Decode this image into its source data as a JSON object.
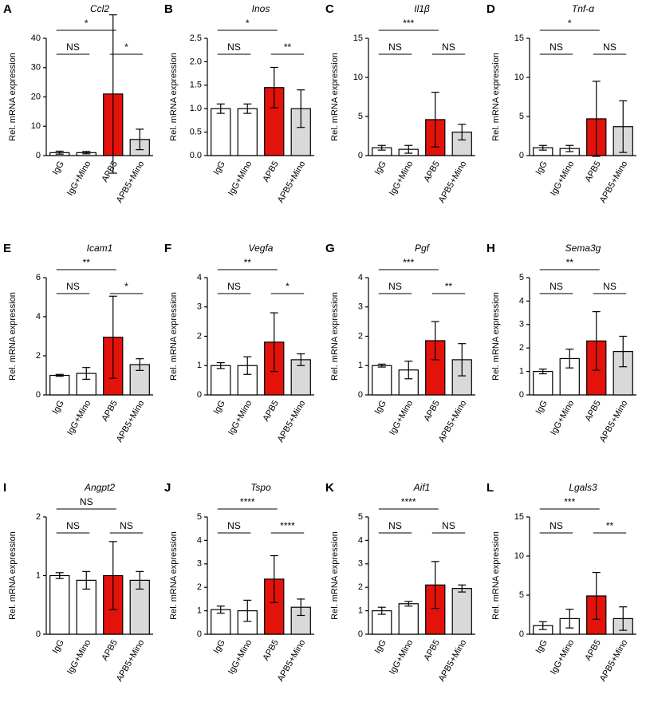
{
  "chart_data": [
    {
      "type": "bar",
      "panel": "A",
      "title": "Ccl2",
      "y_label": "Rel. mRNA expression",
      "categories": [
        "IgG",
        "IgG+Mino",
        "APB5",
        "APB5+Mino"
      ],
      "values": [
        1,
        1,
        21,
        5.5
      ],
      "errors": [
        0.5,
        0.4,
        27,
        3.5
      ],
      "colors": [
        "#ffffff",
        "#ffffff",
        "#e3120b",
        "#d9d9d9"
      ],
      "ylim": [
        0,
        40
      ],
      "yticks": [
        0,
        10,
        20,
        30,
        40
      ],
      "annotations": [
        {
          "label": "*",
          "from": 0,
          "to": 2
        },
        {
          "label": "NS",
          "from": 0,
          "to": 1
        },
        {
          "label": "*",
          "from": 2,
          "to": 3
        }
      ]
    },
    {
      "type": "bar",
      "panel": "B",
      "title": "Inos",
      "y_label": "Rel. mRNA expression",
      "categories": [
        "IgG",
        "IgG+Mino",
        "APB5",
        "APB5+Mino"
      ],
      "values": [
        1.0,
        1.0,
        1.45,
        1.0
      ],
      "errors": [
        0.1,
        0.1,
        0.43,
        0.4
      ],
      "colors": [
        "#ffffff",
        "#ffffff",
        "#e3120b",
        "#d9d9d9"
      ],
      "ylim": [
        0,
        2.5
      ],
      "yticks": [
        {
          "value": 0,
          "label": "0.0"
        },
        0.5,
        {
          "value": 1,
          "label": "1.0"
        },
        1.5,
        {
          "value": 2,
          "label": "2.0"
        },
        2.5
      ],
      "annotations": [
        {
          "label": "*",
          "from": 0,
          "to": 2
        },
        {
          "label": "NS",
          "from": 0,
          "to": 1
        },
        {
          "label": "**",
          "from": 2,
          "to": 3
        }
      ]
    },
    {
      "type": "bar",
      "panel": "C",
      "title": "Il1β",
      "y_label": "Rel. mRNA expression",
      "categories": [
        "IgG",
        "IgG+Mino",
        "APB5",
        "APB5+Mino"
      ],
      "values": [
        1.0,
        0.8,
        4.6,
        3.0
      ],
      "errors": [
        0.3,
        0.5,
        3.5,
        1.0
      ],
      "colors": [
        "#ffffff",
        "#ffffff",
        "#e3120b",
        "#d9d9d9"
      ],
      "ylim": [
        0,
        15
      ],
      "yticks": [
        0,
        5,
        10,
        15
      ],
      "annotations": [
        {
          "label": "***",
          "from": 0,
          "to": 2
        },
        {
          "label": "NS",
          "from": 0,
          "to": 1
        },
        {
          "label": "NS",
          "from": 2,
          "to": 3
        }
      ]
    },
    {
      "type": "bar",
      "panel": "D",
      "title": "Tnf-α",
      "y_label": "Rel. mRNA expression",
      "categories": [
        "IgG",
        "IgG+Mino",
        "APB5",
        "APB5+Mino"
      ],
      "values": [
        1.0,
        0.9,
        4.7,
        3.7
      ],
      "errors": [
        0.3,
        0.4,
        4.8,
        3.3
      ],
      "colors": [
        "#ffffff",
        "#ffffff",
        "#e3120b",
        "#d9d9d9"
      ],
      "ylim": [
        0,
        15
      ],
      "yticks": [
        0,
        5,
        10,
        15
      ],
      "annotations": [
        {
          "label": "*",
          "from": 0,
          "to": 2
        },
        {
          "label": "NS",
          "from": 0,
          "to": 1
        },
        {
          "label": "NS",
          "from": 2,
          "to": 3
        }
      ]
    },
    {
      "type": "bar",
      "panel": "E",
      "title": "Icam1",
      "y_label": "Rel. mRNA expression",
      "categories": [
        "IgG",
        "IgG+Mino",
        "APB5",
        "APB5+Mino"
      ],
      "values": [
        1.0,
        1.1,
        2.95,
        1.55
      ],
      "errors": [
        0.05,
        0.3,
        2.1,
        0.3
      ],
      "colors": [
        "#ffffff",
        "#ffffff",
        "#e3120b",
        "#d9d9d9"
      ],
      "ylim": [
        0,
        6
      ],
      "yticks": [
        0,
        2,
        4,
        6
      ],
      "annotations": [
        {
          "label": "**",
          "from": 0,
          "to": 2
        },
        {
          "label": "NS",
          "from": 0,
          "to": 1
        },
        {
          "label": "*",
          "from": 2,
          "to": 3
        }
      ]
    },
    {
      "type": "bar",
      "panel": "F",
      "title": "Vegfa",
      "y_label": "Rel. mRNA expression",
      "categories": [
        "IgG",
        "IgG+Mino",
        "APB5",
        "APB5+Mino"
      ],
      "values": [
        1.0,
        1.0,
        1.8,
        1.2
      ],
      "errors": [
        0.1,
        0.3,
        1.0,
        0.2
      ],
      "colors": [
        "#ffffff",
        "#ffffff",
        "#e3120b",
        "#d9d9d9"
      ],
      "ylim": [
        0,
        4
      ],
      "yticks": [
        0,
        1,
        2,
        3,
        4
      ],
      "annotations": [
        {
          "label": "**",
          "from": 0,
          "to": 2
        },
        {
          "label": "NS",
          "from": 0,
          "to": 1
        },
        {
          "label": "*",
          "from": 2,
          "to": 3
        }
      ]
    },
    {
      "type": "bar",
      "panel": "G",
      "title": "Pgf",
      "y_label": "Rel. mRNA expression",
      "categories": [
        "IgG",
        "IgG+Mino",
        "APB5",
        "APB5+Mino"
      ],
      "values": [
        1.0,
        0.85,
        1.85,
        1.2
      ],
      "errors": [
        0.05,
        0.3,
        0.65,
        0.55
      ],
      "colors": [
        "#ffffff",
        "#ffffff",
        "#e3120b",
        "#d9d9d9"
      ],
      "ylim": [
        0,
        4
      ],
      "yticks": [
        0,
        1,
        2,
        3,
        4
      ],
      "annotations": [
        {
          "label": "***",
          "from": 0,
          "to": 2
        },
        {
          "label": "NS",
          "from": 0,
          "to": 1
        },
        {
          "label": "**",
          "from": 2,
          "to": 3
        }
      ]
    },
    {
      "type": "bar",
      "panel": "H",
      "title": "Sema3g",
      "y_label": "Rel. mRNA expression",
      "categories": [
        "IgG",
        "IgG+Mino",
        "APB5",
        "APB5+Mino"
      ],
      "values": [
        1.0,
        1.55,
        2.3,
        1.85
      ],
      "errors": [
        0.1,
        0.4,
        1.25,
        0.65
      ],
      "colors": [
        "#ffffff",
        "#ffffff",
        "#e3120b",
        "#d9d9d9"
      ],
      "ylim": [
        0,
        5
      ],
      "yticks": [
        0,
        1,
        2,
        3,
        4,
        5
      ],
      "annotations": [
        {
          "label": "**",
          "from": 0,
          "to": 2
        },
        {
          "label": "NS",
          "from": 0,
          "to": 1
        },
        {
          "label": "NS",
          "from": 2,
          "to": 3
        }
      ]
    },
    {
      "type": "bar",
      "panel": "I",
      "title": "Angpt2",
      "y_label": "Rel. mRNA expression",
      "categories": [
        "IgG",
        "IgG+Mino",
        "APB5",
        "APB5+Mino"
      ],
      "values": [
        1.0,
        0.92,
        1.0,
        0.92
      ],
      "errors": [
        0.05,
        0.15,
        0.58,
        0.15
      ],
      "colors": [
        "#ffffff",
        "#ffffff",
        "#e3120b",
        "#d9d9d9"
      ],
      "ylim": [
        0,
        2
      ],
      "yticks": [
        0,
        1,
        2
      ],
      "annotations": [
        {
          "label": "NS",
          "from": 0,
          "to": 2
        },
        {
          "label": "NS",
          "from": 0,
          "to": 1
        },
        {
          "label": "NS",
          "from": 2,
          "to": 3
        }
      ]
    },
    {
      "type": "bar",
      "panel": "J",
      "title": "Tspo",
      "y_label": "Rel. mRNA expression",
      "categories": [
        "IgG",
        "IgG+Mino",
        "APB5",
        "APB5+Mino"
      ],
      "values": [
        1.05,
        1.0,
        2.35,
        1.15
      ],
      "errors": [
        0.15,
        0.45,
        1.0,
        0.35
      ],
      "colors": [
        "#ffffff",
        "#ffffff",
        "#e3120b",
        "#d9d9d9"
      ],
      "ylim": [
        0,
        5
      ],
      "yticks": [
        0,
        1,
        2,
        3,
        4,
        5
      ],
      "annotations": [
        {
          "label": "****",
          "from": 0,
          "to": 2
        },
        {
          "label": "NS",
          "from": 0,
          "to": 1
        },
        {
          "label": "****",
          "from": 2,
          "to": 3
        }
      ]
    },
    {
      "type": "bar",
      "panel": "K",
      "title": "Aif1",
      "y_label": "Rel. mRNA expression",
      "categories": [
        "IgG",
        "IgG+Mino",
        "APB5",
        "APB5+Mino"
      ],
      "values": [
        1.0,
        1.3,
        2.1,
        1.95
      ],
      "errors": [
        0.15,
        0.1,
        1.0,
        0.15
      ],
      "colors": [
        "#ffffff",
        "#ffffff",
        "#e3120b",
        "#d9d9d9"
      ],
      "ylim": [
        0,
        5
      ],
      "yticks": [
        0,
        1,
        2,
        3,
        4,
        5
      ],
      "annotations": [
        {
          "label": "****",
          "from": 0,
          "to": 2
        },
        {
          "label": "NS",
          "from": 0,
          "to": 1
        },
        {
          "label": "NS",
          "from": 2,
          "to": 3
        }
      ]
    },
    {
      "type": "bar",
      "panel": "L",
      "title": "Lgals3",
      "y_label": "Rel. mRNA expression",
      "categories": [
        "IgG",
        "IgG+Mino",
        "APB5",
        "APB5+Mino"
      ],
      "values": [
        1.1,
        2.0,
        4.9,
        2.0
      ],
      "errors": [
        0.5,
        1.2,
        3.0,
        1.5
      ],
      "colors": [
        "#ffffff",
        "#ffffff",
        "#e3120b",
        "#d9d9d9"
      ],
      "ylim": [
        0,
        15
      ],
      "yticks": [
        0,
        5,
        10,
        15
      ],
      "annotations": [
        {
          "label": "***",
          "from": 0,
          "to": 2
        },
        {
          "label": "NS",
          "from": 0,
          "to": 1
        },
        {
          "label": "**",
          "from": 2,
          "to": 3
        }
      ]
    }
  ]
}
